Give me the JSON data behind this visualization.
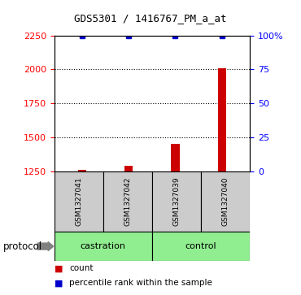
{
  "title": "GDS5301 / 1416767_PM_a_at",
  "samples": [
    "GSM1327041",
    "GSM1327042",
    "GSM1327039",
    "GSM1327040"
  ],
  "count_values": [
    1262,
    1287,
    1450,
    2010
  ],
  "percentile_values": [
    99.9,
    99.9,
    99.9,
    99.9
  ],
  "ylim_left": [
    1250,
    2250
  ],
  "ylim_right": [
    0,
    100
  ],
  "yticks_left": [
    1250,
    1500,
    1750,
    2000,
    2250
  ],
  "yticks_right": [
    0,
    25,
    50,
    75,
    100
  ],
  "yticklabels_right": [
    "0",
    "25",
    "50",
    "75",
    "100%"
  ],
  "dotted_lines": [
    2000,
    1750,
    1500
  ],
  "groups": [
    {
      "label": "castration",
      "samples": [
        0,
        1
      ],
      "color": "#90EE90"
    },
    {
      "label": "control",
      "samples": [
        2,
        3
      ],
      "color": "#90EE90"
    }
  ],
  "bar_color": "#CC0000",
  "dot_color": "#0000CC",
  "sample_box_color": "#CCCCCC",
  "background_color": "#FFFFFF",
  "bar_width": 0.5,
  "protocol_label": "protocol",
  "legend_count_label": "count",
  "legend_percentile_label": "percentile rank within the sample"
}
